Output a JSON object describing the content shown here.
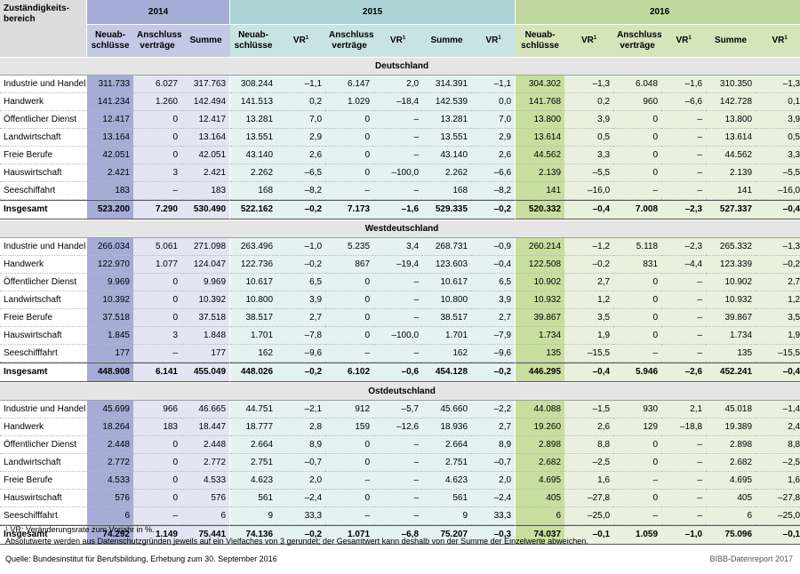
{
  "header": {
    "zustaendigkeit": "Zuständigkeits-",
    "zustaendigkeit2": "bereich",
    "years": [
      "2014",
      "2015",
      "2016"
    ],
    "col_neu1": "Neuab-",
    "col_neu2": "schlüsse",
    "col_anschl1": "Anschluss-",
    "col_anschl2": "verträge",
    "col_summe": "Summe",
    "col_vr": "VR",
    "vr_sup": "1"
  },
  "sections": [
    {
      "title": "Deutschland",
      "rows": [
        [
          "Industrie und Handel",
          "311.733",
          "6.027",
          "317.763",
          "308.244",
          "–1,1",
          "6.147",
          "2,0",
          "314.391",
          "–1,1",
          "304.302",
          "–1,3",
          "6.048",
          "–1,6",
          "310.350",
          "–1,3"
        ],
        [
          "Handwerk",
          "141.234",
          "1.260",
          "142.494",
          "141.513",
          "0,2",
          "1.029",
          "–18,4",
          "142.539",
          "0,0",
          "141.768",
          "0,2",
          "960",
          "–6,6",
          "142.728",
          "0,1"
        ],
        [
          "Öffentlicher Dienst",
          "12.417",
          "0",
          "12.417",
          "13.281",
          "7,0",
          "0",
          "–",
          "13.281",
          "7,0",
          "13.800",
          "3,9",
          "0",
          "–",
          "13.800",
          "3,9"
        ],
        [
          "Landwirtschaft",
          "13.164",
          "0",
          "13.164",
          "13.551",
          "2,9",
          "0",
          "–",
          "13.551",
          "2,9",
          "13.614",
          "0,5",
          "0",
          "–",
          "13.614",
          "0,5"
        ],
        [
          "Freie Berufe",
          "42.051",
          "0",
          "42.051",
          "43.140",
          "2,6",
          "0",
          "–",
          "43.140",
          "2,6",
          "44.562",
          "3,3",
          "0",
          "–",
          "44.562",
          "3,3"
        ],
        [
          "Hauswirtschaft",
          "2.421",
          "3",
          "2.421",
          "2.262",
          "–6,5",
          "0",
          "–100,0",
          "2.262",
          "–6,6",
          "2.139",
          "–5,5",
          "0",
          "–",
          "2.139",
          "–5,5"
        ],
        [
          "Seeschiffahrt",
          "183",
          "–",
          "183",
          "168",
          "–8,2",
          "–",
          "–",
          "168",
          "–8,2",
          "141",
          "–16,0",
          "–",
          "–",
          "141",
          "–16,0"
        ]
      ],
      "total": [
        "Insgesamt",
        "523.200",
        "7.290",
        "530.490",
        "522.162",
        "–0,2",
        "7.173",
        "–1,6",
        "529.335",
        "–0,2",
        "520.332",
        "–0,4",
        "7.008",
        "–2,3",
        "527.337",
        "–0,4"
      ]
    },
    {
      "title": "Westdeutschland",
      "rows": [
        [
          "Industrie und Handel",
          "266.034",
          "5.061",
          "271.098",
          "263.496",
          "–1,0",
          "5.235",
          "3,4",
          "268.731",
          "–0,9",
          "260.214",
          "–1,2",
          "5.118",
          "–2,3",
          "265.332",
          "–1,3"
        ],
        [
          "Handwerk",
          "122.970",
          "1.077",
          "124.047",
          "122.736",
          "–0,2",
          "867",
          "–19,4",
          "123.603",
          "–0,4",
          "122.508",
          "–0,2",
          "831",
          "–4,4",
          "123.339",
          "–0,2"
        ],
        [
          "Öffentlicher Dienst",
          "9.969",
          "0",
          "9.969",
          "10.617",
          "6,5",
          "0",
          "–",
          "10.617",
          "6,5",
          "10.902",
          "2,7",
          "0",
          "–",
          "10.902",
          "2,7"
        ],
        [
          "Landwirtschaft",
          "10.392",
          "0",
          "10.392",
          "10.800",
          "3,9",
          "0",
          "–",
          "10.800",
          "3,9",
          "10.932",
          "1,2",
          "0",
          "–",
          "10.932",
          "1,2"
        ],
        [
          "Freie Berufe",
          "37.518",
          "0",
          "37.518",
          "38.517",
          "2,7",
          "0",
          "–",
          "38.517",
          "2,7",
          "39.867",
          "3,5",
          "0",
          "–",
          "39.867",
          "3,5"
        ],
        [
          "Hauswirtschaft",
          "1.845",
          "3",
          "1.848",
          "1.701",
          "–7,8",
          "0",
          "–100,0",
          "1.701",
          "–7,9",
          "1.734",
          "1,9",
          "0",
          "–",
          "1.734",
          "1,9"
        ],
        [
          "Seeschifffahrt",
          "177",
          "–",
          "177",
          "162",
          "–9,6",
          "–",
          "–",
          "162",
          "–9,6",
          "135",
          "–15,5",
          "–",
          "–",
          "135",
          "–15,5"
        ]
      ],
      "total": [
        "Insgesamt",
        "448.908",
        "6.141",
        "455.049",
        "448.026",
        "–0,2",
        "6.102",
        "–0,6",
        "454.128",
        "–0,2",
        "446.295",
        "–0,4",
        "5.946",
        "–2,6",
        "452.241",
        "–0,4"
      ]
    },
    {
      "title": "Ostdeutschland",
      "rows": [
        [
          "Industrie und Handel",
          "45.699",
          "966",
          "46.665",
          "44.751",
          "–2,1",
          "912",
          "–5,7",
          "45.660",
          "–2,2",
          "44.088",
          "–1,5",
          "930",
          "2,1",
          "45.018",
          "–1,4"
        ],
        [
          "Handwerk",
          "18.264",
          "183",
          "18.447",
          "18.777",
          "2,8",
          "159",
          "–12,6",
          "18.936",
          "2,7",
          "19.260",
          "2,6",
          "129",
          "–18,8",
          "19.389",
          "2,4"
        ],
        [
          "Öffentlicher Dienst",
          "2.448",
          "0",
          "2.448",
          "2.664",
          "8,9",
          "0",
          "–",
          "2.664",
          "8,9",
          "2.898",
          "8,8",
          "0",
          "–",
          "2.898",
          "8,8"
        ],
        [
          "Landwirtschaft",
          "2.772",
          "0",
          "2.772",
          "2.751",
          "–0,7",
          "0",
          "–",
          "2.751",
          "–0,7",
          "2.682",
          "–2,5",
          "0",
          "–",
          "2.682",
          "–2,5"
        ],
        [
          "Freie Berufe",
          "4.533",
          "0",
          "4.533",
          "4.623",
          "2,0",
          "–",
          "–",
          "4.623",
          "2,0",
          "4.695",
          "1,6",
          "–",
          "–",
          "4.695",
          "1,6"
        ],
        [
          "Hauswirtschaft",
          "576",
          "0",
          "576",
          "561",
          "–2,4",
          "0",
          "–",
          "561",
          "–2,4",
          "405",
          "–27,8",
          "0",
          "–",
          "405",
          "–27,8"
        ],
        [
          "Seeschifffahrt",
          "6",
          "–",
          "6",
          "9",
          "33,3",
          "–",
          "–",
          "9",
          "33,3",
          "6",
          "–25,0",
          "–",
          "–",
          "6",
          "–25,0"
        ]
      ],
      "total": [
        "Insgesamt",
        "74.292",
        "1.149",
        "75.441",
        "74.136",
        "–0,2",
        "1.071",
        "–6,8",
        "75.207",
        "–0,3",
        "74.037",
        "–0,1",
        "1.059",
        "–1,0",
        "75.096",
        "–0,1"
      ]
    }
  ],
  "footnotes": {
    "note1": "¹ VR: Veränderungsrate zum Vorjahr in %.",
    "note2": "Absolutwerte werden aus Datenschutzgründen jeweils auf ein Vielfaches von 3 gerundet; der Gesamtwert kann deshalb von der Summe der Einzelwerte abweichen.",
    "source": "Quelle: Bundesinstitut für Berufsbildung, Erhebung zum 30. September 2016",
    "credit": "BIBB-Datenreport 2017"
  },
  "colors": {
    "y2014_header": "#a5acd6",
    "y2015_header": "#acd4d6",
    "y2016_header": "#c1d89f",
    "section_bg": "#e5e5e5"
  }
}
